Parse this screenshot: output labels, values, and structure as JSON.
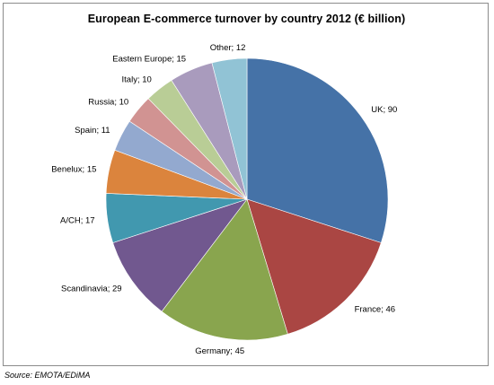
{
  "chart_data": {
    "type": "pie",
    "title": "European E-commerce turnover by country 2012 (€ billion)",
    "slices": [
      {
        "label": "UK",
        "value": 90,
        "display": "UK; 90",
        "color": "#4572A7"
      },
      {
        "label": "France",
        "value": 46,
        "display": "France; 46",
        "color": "#AA4643"
      },
      {
        "label": "Germany",
        "value": 45,
        "display": "Germany; 45",
        "color": "#89A54E"
      },
      {
        "label": "Scandinavia",
        "value": 29,
        "display": "Scandinavia; 29",
        "color": "#71588F"
      },
      {
        "label": "A/CH",
        "value": 17,
        "display": "A/CH; 17",
        "color": "#4198AF"
      },
      {
        "label": "Benelux",
        "value": 15,
        "display": "Benelux; 15",
        "color": "#DB843D"
      },
      {
        "label": "Spain",
        "value": 11,
        "display": "Spain; 11",
        "color": "#93A9CF"
      },
      {
        "label": "Russia",
        "value": 10,
        "display": "Russia; 10",
        "color": "#D19392"
      },
      {
        "label": "Italy",
        "value": 10,
        "display": "Italy; 10",
        "color": "#B9CD96"
      },
      {
        "label": "Eastern Europe",
        "value": 15,
        "display": "Eastern Europe; 15",
        "color": "#A99BBD"
      },
      {
        "label": "Other",
        "value": 12,
        "display": "Other; 12",
        "color": "#91C3D5"
      }
    ],
    "start": "12 o'clock",
    "direction": "clockwise",
    "data_labels": "category; value outside slices",
    "legend": "none"
  },
  "source": "Source: EMOTA/EDiMA"
}
